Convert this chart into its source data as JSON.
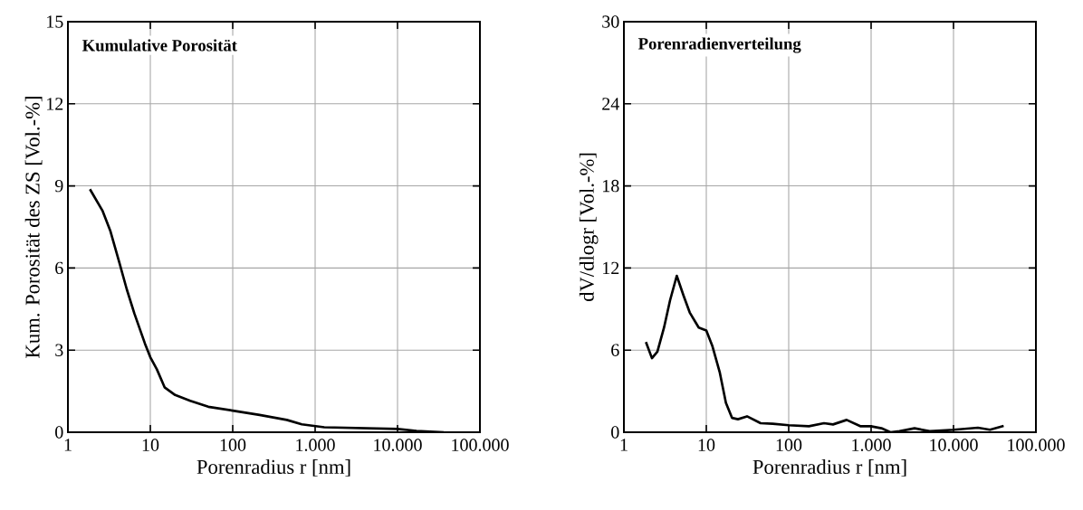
{
  "chart_data": [
    {
      "type": "line",
      "title": "Kumulative Porosität",
      "xlabel": "Porenradius r [nm]",
      "ylabel": "Kum. Porosität des ZS [Vol.-%]",
      "log": "x",
      "grid": true,
      "marker": "none",
      "line_style": "solid",
      "xlim": [
        1,
        100000
      ],
      "ylim": [
        0,
        15
      ],
      "xticks": [
        1,
        10,
        100,
        {
          "value": 1000,
          "label": "1.000"
        },
        {
          "value": 10000,
          "label": "10.000"
        },
        {
          "value": 100000,
          "label": "100.000"
        }
      ],
      "yticks": [
        0,
        3,
        6,
        9,
        12,
        15
      ],
      "x": [
        1.85,
        2.64,
        3.26,
        4.2,
        5.18,
        6.4,
        8.6,
        10,
        12,
        14.9,
        20,
        30.5,
        50.5,
        100,
        212,
        453,
        689,
        1290,
        10000,
        17000,
        36300
      ],
      "series": [
        {
          "color": "#000000",
          "values": [
            8.88,
            8.08,
            7.37,
            6.21,
            5.22,
            4.34,
            3.24,
            2.74,
            2.3,
            1.64,
            1.36,
            1.15,
            0.93,
            0.79,
            0.63,
            0.45,
            0.29,
            0.18,
            0.12,
            0.05,
            0.0
          ]
        }
      ]
    },
    {
      "type": "line",
      "title": "Porenradienverteilung",
      "xlabel": "Porenradius r [nm]",
      "ylabel": "dV/dlogr [Vol.-%]",
      "log": "x",
      "grid": true,
      "marker": "none",
      "line_style": "solid",
      "xlim": [
        1,
        100000
      ],
      "ylim": [
        0,
        30
      ],
      "xticks": [
        1,
        10,
        100,
        {
          "value": 1000,
          "label": "1.000"
        },
        {
          "value": 10000,
          "label": "10.000"
        },
        {
          "value": 100000,
          "label": "100.000"
        }
      ],
      "yticks": [
        0,
        6,
        12,
        18,
        24,
        30
      ],
      "x": [
        1.85,
        2.19,
        2.55,
        3.07,
        3.63,
        4.38,
        5.31,
        6.29,
        8.09,
        10,
        11.8,
        14.6,
        17.3,
        20.5,
        24.2,
        31.2,
        45.6,
        64,
        100,
        176,
        268,
        345,
        505,
        738,
        991,
        1333,
        1716,
        2208,
        3365,
        5140,
        10090,
        19800,
        27700,
        40600
      ],
      "series": [
        {
          "color": "#000000",
          "values": [
            6.59,
            5.41,
            5.89,
            7.65,
            9.63,
            11.43,
            9.96,
            8.75,
            7.65,
            7.43,
            6.33,
            4.35,
            2.15,
            1.05,
            0.95,
            1.16,
            0.66,
            0.62,
            0.51,
            0.44,
            0.66,
            0.57,
            0.9,
            0.44,
            0.44,
            0.29,
            0.0,
            0.07,
            0.29,
            0.07,
            0.18,
            0.33,
            0.18,
            0.46
          ]
        }
      ]
    }
  ]
}
